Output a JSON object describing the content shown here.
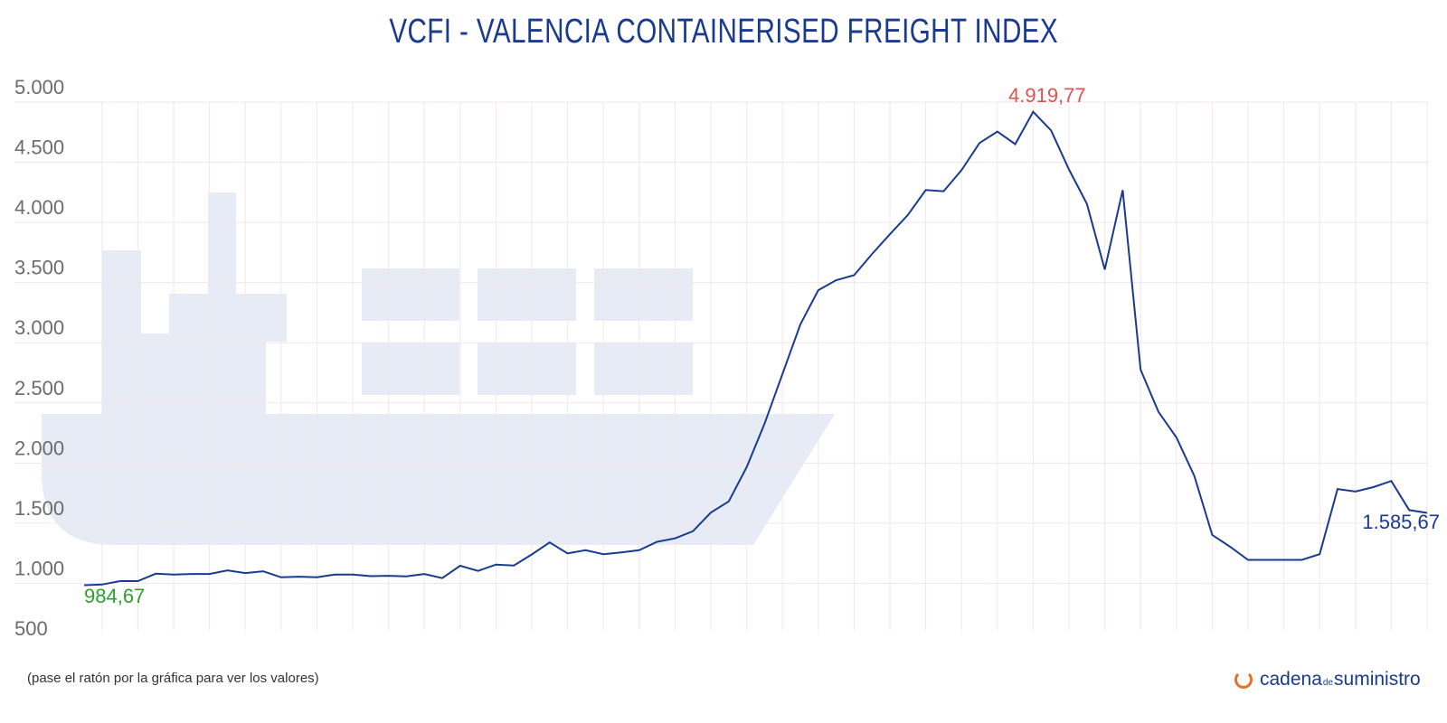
{
  "title": "VCFI - VALENCIA CONTAINERISED FREIGHT INDEX",
  "footer_note": "(pase el ratón por la gráfica para ver los valores)",
  "logo": {
    "part1": "cadena",
    "part2": "de",
    "part3": "suministro"
  },
  "colors": {
    "line": "#1a3a8f",
    "max": "#d9534f",
    "min": "#2ca02c",
    "last": "#1a3a8f",
    "ship": "#e6ebf5",
    "grid": "#f3e6e6"
  },
  "chart_data": {
    "type": "line",
    "title": "VCFI - VALENCIA CONTAINERISED FREIGHT INDEX",
    "ylim": [
      500,
      5000
    ],
    "yticks": [
      500,
      1000,
      1500,
      2000,
      2500,
      3000,
      3500,
      4000,
      4500,
      5000
    ],
    "ytick_labels": [
      "500",
      "1.000",
      "1.500",
      "2.000",
      "2.500",
      "3.000",
      "3.500",
      "4.000",
      "4.500",
      "5.000"
    ],
    "grid": true,
    "values": [
      984.67,
      990,
      1018,
      1018,
      1080,
      1073,
      1078,
      1078,
      1108,
      1085,
      1100,
      1050,
      1055,
      1050,
      1073,
      1073,
      1060,
      1063,
      1058,
      1078,
      1043,
      1146,
      1103,
      1156,
      1148,
      1240,
      1340,
      1249,
      1275,
      1242,
      1257,
      1275,
      1345,
      1374,
      1433,
      1588,
      1681,
      1965,
      2327,
      2740,
      3153,
      3437,
      3520,
      3561,
      3737,
      3902,
      4062,
      4269,
      4259,
      4434,
      4660,
      4755,
      4651,
      4919.77,
      4765,
      4440,
      4155,
      3608,
      4269,
      2776,
      2425,
      2213,
      1893,
      1402,
      1304,
      1195,
      1195,
      1195,
      1195,
      1242,
      1784,
      1763,
      1800,
      1851,
      1609,
      1585.67
    ],
    "annotations": {
      "min": "984,67",
      "max": "4.919,77",
      "last": "1.585,67"
    }
  }
}
